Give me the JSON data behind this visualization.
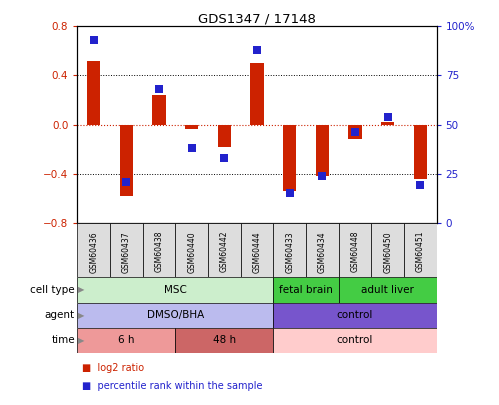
{
  "title": "GDS1347 / 17148",
  "samples": [
    "GSM60436",
    "GSM60437",
    "GSM60438",
    "GSM60440",
    "GSM60442",
    "GSM60444",
    "GSM60433",
    "GSM60434",
    "GSM60448",
    "GSM60450",
    "GSM60451"
  ],
  "log2_ratio": [
    0.52,
    -0.58,
    0.24,
    -0.04,
    -0.18,
    0.5,
    -0.54,
    -0.42,
    -0.12,
    0.02,
    -0.44
  ],
  "percentile_rank": [
    93,
    21,
    68,
    38,
    33,
    88,
    15,
    24,
    46,
    54,
    19
  ],
  "ylim": [
    -0.8,
    0.8
  ],
  "y2lim": [
    0,
    100
  ],
  "yticks": [
    -0.8,
    -0.4,
    0,
    0.4,
    0.8
  ],
  "y2ticks": [
    0,
    25,
    50,
    75,
    100
  ],
  "y2ticklabels": [
    "0",
    "25",
    "50",
    "75",
    "100%"
  ],
  "dotted_lines": [
    -0.4,
    0.4
  ],
  "zero_line": 0,
  "bar_color": "#CC2200",
  "dot_color": "#2222CC",
  "bar_width": 0.4,
  "cell_type_groups": [
    {
      "label": "MSC",
      "start": 0,
      "end": 6,
      "color": "#CCEECC"
    },
    {
      "label": "fetal brain",
      "start": 6,
      "end": 8,
      "color": "#44CC44"
    },
    {
      "label": "adult liver",
      "start": 8,
      "end": 11,
      "color": "#44CC44"
    }
  ],
  "agent_groups": [
    {
      "label": "DMSO/BHA",
      "start": 0,
      "end": 6,
      "color": "#BBBBEE"
    },
    {
      "label": "control",
      "start": 6,
      "end": 11,
      "color": "#7755CC"
    }
  ],
  "time_groups": [
    {
      "label": "6 h",
      "start": 0,
      "end": 3,
      "color": "#EE9999"
    },
    {
      "label": "48 h",
      "start": 3,
      "end": 6,
      "color": "#CC6666"
    },
    {
      "label": "control",
      "start": 6,
      "end": 11,
      "color": "#FFCCCC"
    }
  ],
  "row_labels": [
    "cell type",
    "agent",
    "time"
  ],
  "legend_items": [
    {
      "label": "log2 ratio",
      "color": "#CC2200"
    },
    {
      "label": "percentile rank within the sample",
      "color": "#2222CC"
    }
  ]
}
